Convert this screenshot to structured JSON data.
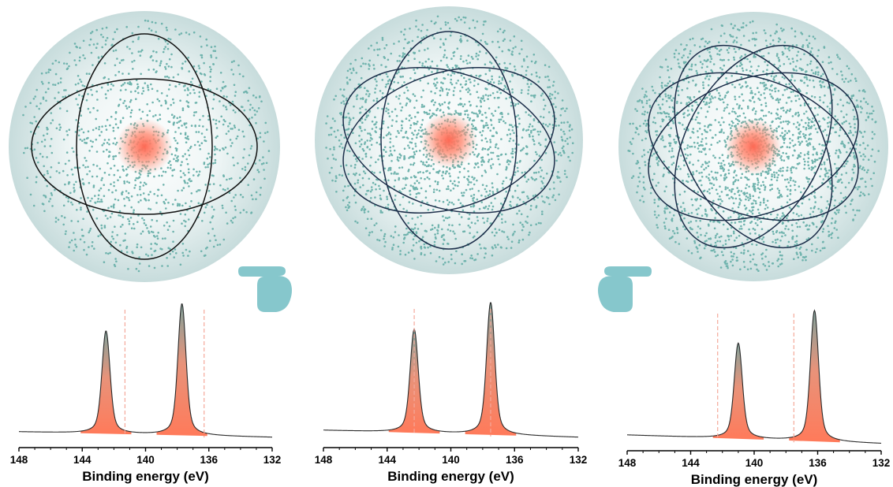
{
  "colors": {
    "sphere_inner": "#ffffff",
    "sphere_outer": "#c7dcdc",
    "dots": "#6fb3ad",
    "core": "#ff6a55",
    "orbit_panel1": "#111111",
    "orbit_other": "#1c2e4a",
    "peak_top": "#7fa29c",
    "peak_bottom": "#ff7a5a",
    "dashed_line": "#f4a89a",
    "hand": "#86c7cc"
  },
  "icons": [
    "pointing-hand-right-icon",
    "pointing-hand-left-icon"
  ],
  "panels": [
    {
      "x_axis_label": "Binding energy (eV)",
      "peak_positions_eV": [
        142.5,
        137.7
      ],
      "dashed_lines_eV": [
        141.3,
        136.3
      ],
      "peak_heights_rel": [
        0.78,
        1.0
      ],
      "orbits": 2
    },
    {
      "x_axis_label": "Binding energy (eV)",
      "peak_positions_eV": [
        142.3,
        137.5
      ],
      "dashed_lines_eV": [
        142.3,
        137.5
      ],
      "peak_heights_rel": [
        0.78,
        1.0
      ],
      "orbits": 3
    },
    {
      "x_axis_label": "Binding energy (eV)",
      "peak_positions_eV": [
        141.0,
        136.2
      ],
      "dashed_lines_eV": [
        142.3,
        137.5
      ],
      "peak_heights_rel": [
        0.73,
        1.0
      ],
      "orbits": 4
    }
  ],
  "chart_data": [
    {
      "type": "line",
      "xlabel": "Binding energy (eV)",
      "xlim": [
        148,
        132
      ],
      "xticks": [
        148,
        144,
        140,
        136,
        132
      ],
      "series": [
        {
          "x": [
            142.5,
            137.7
          ],
          "y": [
            0.78,
            1.0
          ]
        }
      ]
    },
    {
      "type": "line",
      "xlabel": "Binding energy (eV)",
      "xlim": [
        148,
        132
      ],
      "xticks": [
        148,
        144,
        140,
        136,
        132
      ],
      "series": [
        {
          "x": [
            142.3,
            137.5
          ],
          "y": [
            0.78,
            1.0
          ]
        }
      ]
    },
    {
      "type": "line",
      "xlabel": "Binding energy (eV)",
      "xlim": [
        148,
        132
      ],
      "xticks": [
        148,
        144,
        140,
        136,
        132
      ],
      "series": [
        {
          "x": [
            141.0,
            136.2
          ],
          "y": [
            0.73,
            1.0
          ]
        }
      ]
    }
  ]
}
